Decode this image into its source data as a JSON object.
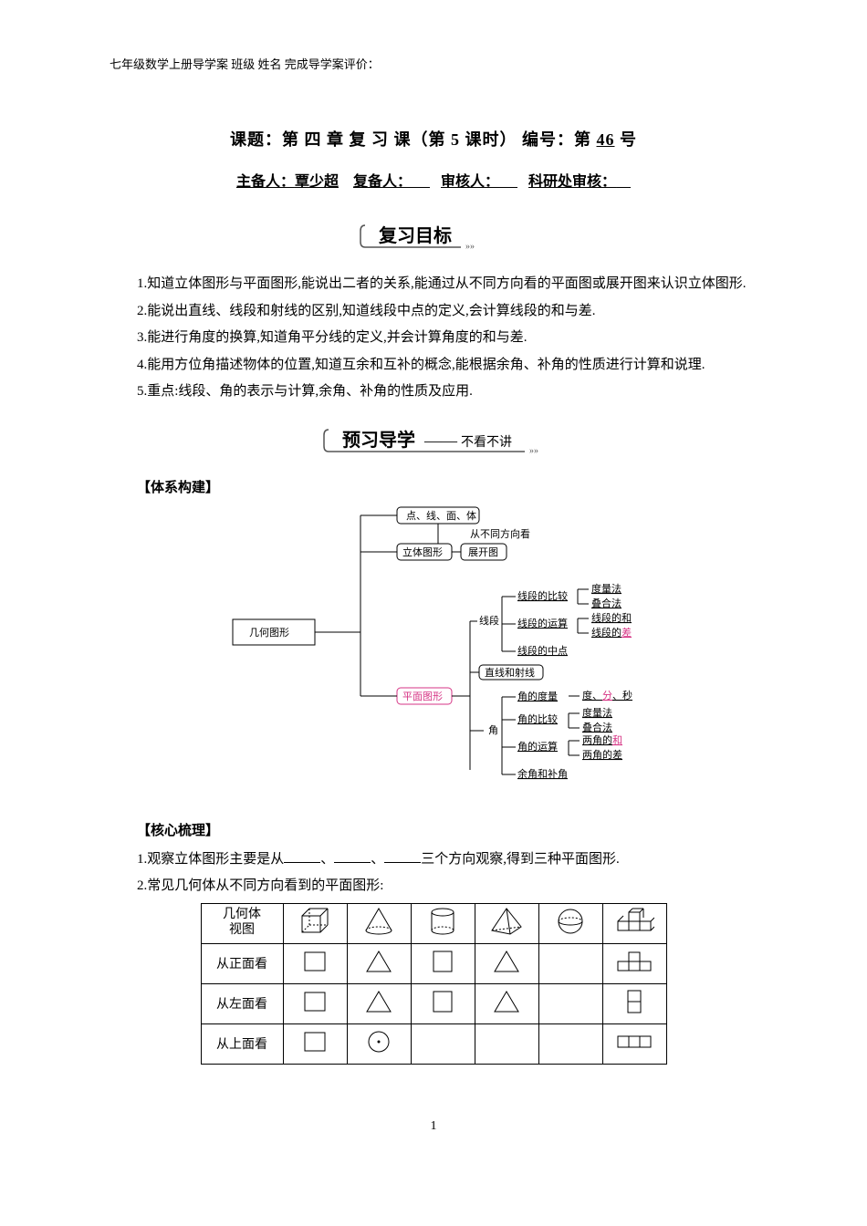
{
  "header": "七年级数学上册导学案   班级            姓名          完成导学案评价：",
  "title": {
    "prefix": "课题：第 四 章    复 习 课（第 5 课时）    编号：第",
    "number": "46",
    "suffix": "号"
  },
  "authors": {
    "label1": "主备人：",
    "name1": "覃少超",
    "label2": "复备人：",
    "label3": "审核人：",
    "label4": "科研处审核："
  },
  "banner1": "复习目标",
  "banner2_main": "预习导学",
  "banner2_sub": "不看不讲",
  "objectives": [
    "1.知道立体图形与平面图形,能说出二者的关系,能通过从不同方向看的平面图或展开图来认识立体图形.",
    "2.能说出直线、线段和射线的区别,知道线段中点的定义,会计算线段的和与差.",
    "3.能进行角度的换算,知道角平分线的定义,并会计算角度的和与差.",
    "4.能用方位角描述物体的位置,知道互余和互补的概念,能根据余角、补角的性质进行计算和说理.",
    "5.重点:线段、角的表示与计算,余角、补角的性质及应用."
  ],
  "subhead1": "【体系构建】",
  "diagram": {
    "root": "几何图形",
    "n1": "点、线、面、体",
    "n2": "立体图形",
    "n2r": "从不同方向看",
    "n3": "展开图",
    "n4": "平面图形",
    "seg": "线段",
    "seg_cmp": "线段的比较",
    "seg_cmp_a": "度量法",
    "seg_cmp_b": "叠合法",
    "seg_op": "线段的运算",
    "seg_op_a": "线段的和",
    "seg_op_b": "线段的差",
    "seg_mid": "线段的中点",
    "lines": "直线和射线",
    "ang": "角",
    "ang_m": "角的度量",
    "ang_m_r": "度、分、秒",
    "ang_cmp": "角的比较",
    "ang_cmp_a": "度量法",
    "ang_cmp_b": "叠合法",
    "ang_op": "角的运算",
    "ang_op_a": "两角的和",
    "ang_op_b": "两角的差",
    "ang_sup": "余角和补角"
  },
  "subhead2": "【核心梳理】",
  "core1_a": "1.观察立体图形主要是从",
  "core1_b": "、",
  "core1_c": "、",
  "core1_d": "三个方向观察,得到三种平面图形.",
  "core2": "2.常见几何体从不同方向看到的平面图形:",
  "table": {
    "r0": "几何体\n视图",
    "r1": "从正面看",
    "r2": "从左面看",
    "r3": "从上面看"
  },
  "pagenum": "1"
}
